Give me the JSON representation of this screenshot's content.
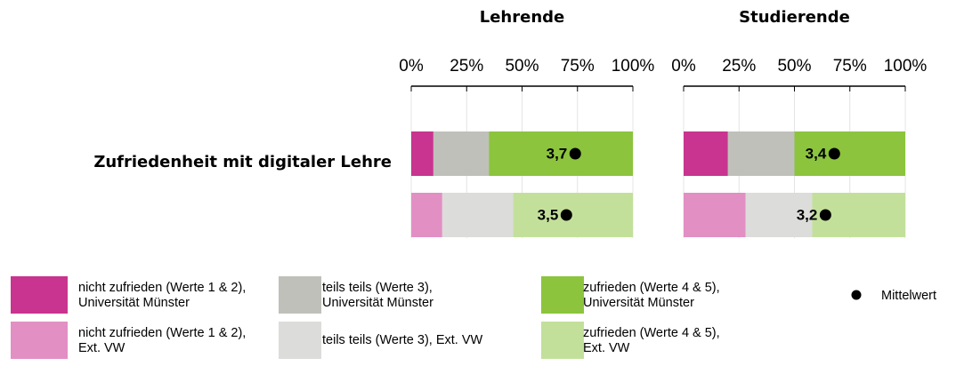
{
  "chart_data": {
    "type": "stacked-bar-horizontal",
    "category": "Zufriedenheit mit digitaler Lehre",
    "panels": [
      "Lehrende",
      "Studierende"
    ],
    "xlim": [
      0,
      100
    ],
    "xticks": [
      {
        "value": 0,
        "label": "0%"
      },
      {
        "value": 25,
        "label": "25%"
      },
      {
        "value": 50,
        "label": "50%"
      },
      {
        "value": 75,
        "label": "75%"
      },
      {
        "value": 100,
        "label": "100%"
      }
    ],
    "grid": true,
    "mean_xlim": [
      0,
      5
    ],
    "mean_name": "Mittelwert",
    "mean_color": "#000000",
    "rows": [
      {
        "series": [
          {
            "name": "nicht zufrieden (Werte 1 & 2), Universität Münster",
            "color": "#c8348f",
            "values": [
              10,
              20
            ]
          },
          {
            "name": "teils teils (Werte 3), Universität Münster",
            "color": "#c0c0bb",
            "values": [
              25,
              30
            ]
          },
          {
            "name": "zufrieden (Werte 4 & 5), Universität Münster",
            "color": "#8cc43e",
            "values": [
              65,
              50
            ]
          }
        ],
        "means": [
          3.7,
          3.4
        ],
        "value_labels": [
          "3,7",
          "3,4"
        ]
      },
      {
        "series": [
          {
            "name": "nicht zufrieden (Werte 1 & 2), Ext. VW",
            "color": "#e28fc4",
            "values": [
              14,
              28
            ]
          },
          {
            "name": "teils teils (Werte 3), Ext. VW",
            "color": "#dcdcda",
            "values": [
              32,
              30
            ]
          },
          {
            "name": "zufrieden (Werte 4 & 5), Ext. VW",
            "color": "#c3e09b",
            "values": [
              54,
              42
            ]
          }
        ],
        "means": [
          3.5,
          3.2
        ],
        "value_labels": [
          "3,5",
          "3,2"
        ]
      }
    ]
  }
}
